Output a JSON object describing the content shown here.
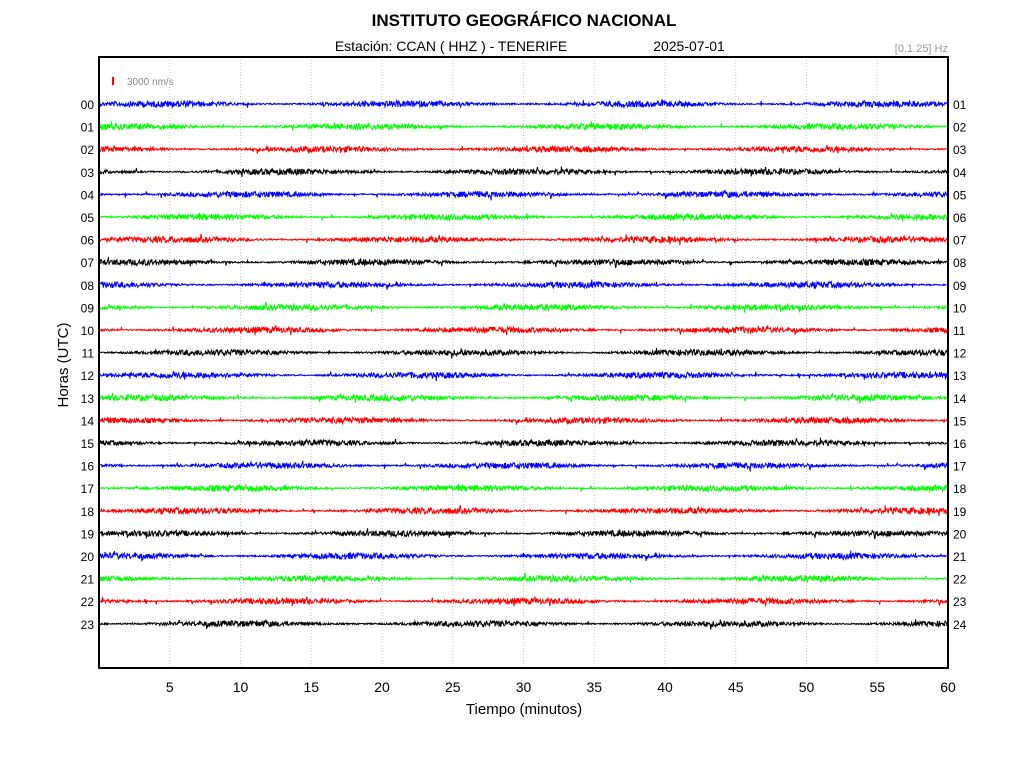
{
  "chart_data": {
    "type": "line",
    "title": "INSTITUTO GEOGRÁFICO NACIONAL",
    "station_label": "Estación:  CCAN ( HHZ ) - TENERIFE",
    "date": "2025-07-01",
    "filter_band": "[0.1 25] Hz",
    "xlabel": "Tiempo (minutos)",
    "ylabel": "Horas (UTC)",
    "xlim": [
      0,
      60
    ],
    "x_ticks": [
      "5",
      "10",
      "15",
      "20",
      "25",
      "30",
      "35",
      "40",
      "45",
      "50",
      "55",
      "60"
    ],
    "grid": true,
    "scale_bar_label": "3000 nm/s",
    "scale_bar_color": "#ff0000",
    "series_colors": [
      "#0000ff",
      "#00ff00",
      "#ff0000",
      "#000000"
    ],
    "left_hour_labels": [
      "00",
      "01",
      "02",
      "03",
      "04",
      "05",
      "06",
      "07",
      "08",
      "09",
      "10",
      "11",
      "12",
      "13",
      "14",
      "15",
      "16",
      "17",
      "18",
      "19",
      "20",
      "21",
      "22",
      "23"
    ],
    "right_hour_labels": [
      "01",
      "02",
      "03",
      "04",
      "05",
      "06",
      "07",
      "08",
      "09",
      "10",
      "11",
      "12",
      "13",
      "14",
      "15",
      "16",
      "17",
      "18",
      "19",
      "20",
      "21",
      "22",
      "23",
      "24"
    ],
    "noise_amplitude_nm_s": 1200
  }
}
